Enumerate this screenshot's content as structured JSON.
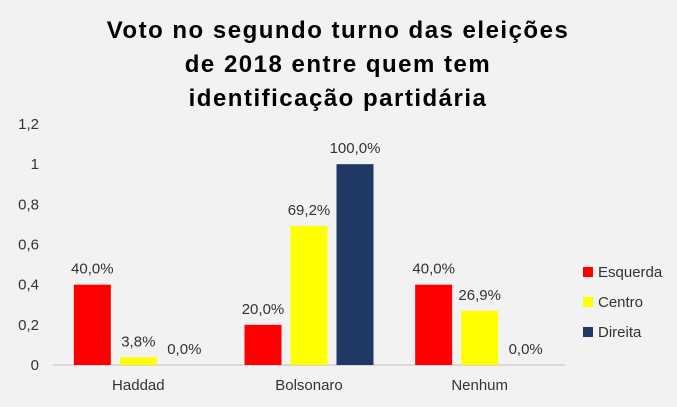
{
  "chart_data": {
    "type": "bar",
    "title_lines": [
      "Voto no segundo turno das eleições",
      "de 2018 entre quem tem",
      "identificação partidária"
    ],
    "categories": [
      "Haddad",
      "Bolsonaro",
      "Nenhum"
    ],
    "series": [
      {
        "name": "Esquerda",
        "color": "#ff0000",
        "values": [
          0.4,
          0.2,
          0.4
        ],
        "labels": [
          "40,0%",
          "20,0%",
          "40,0%"
        ]
      },
      {
        "name": "Centro",
        "color": "#ffff00",
        "values": [
          0.038,
          0.692,
          0.269
        ],
        "labels": [
          "3,8%",
          "69,2%",
          "26,9%"
        ]
      },
      {
        "name": "Direita",
        "color": "#1f3864",
        "values": [
          0.0,
          1.0,
          0.0
        ],
        "labels": [
          "0,0%",
          "100,0%",
          "0,0%"
        ]
      }
    ],
    "yticks": [
      "0",
      "0,2",
      "0,4",
      "0,6",
      "0,8",
      "1",
      "1,2"
    ],
    "ylim": [
      0,
      1.2
    ],
    "grid": false,
    "legend_position": "right"
  }
}
